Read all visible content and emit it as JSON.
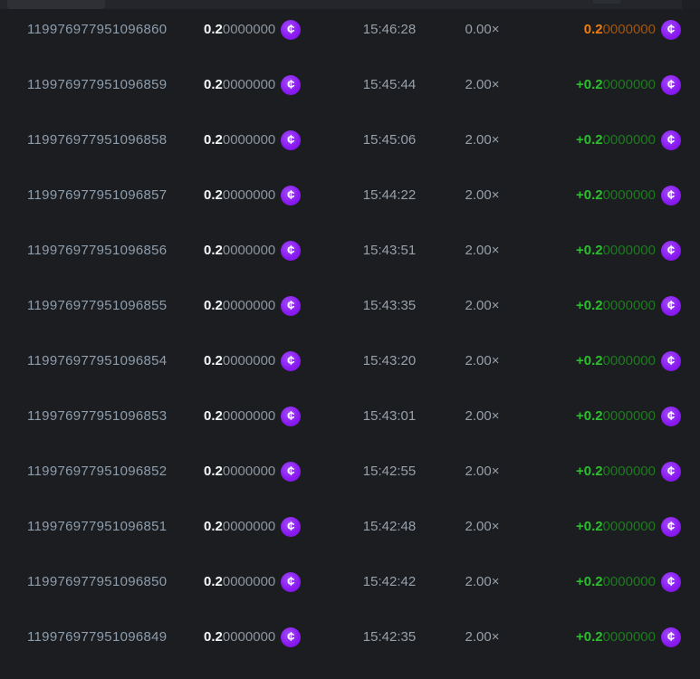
{
  "colors": {
    "page_bg": "#1b1d21",
    "topbar_bg": "#24262b",
    "topbar_segment": "#2e3036",
    "id_text": "#8e9dac",
    "grey_text": "#98a0aa",
    "dim_digits": "#8e959e",
    "white_bold": "#f4f5f6",
    "green_bright": "#2fbe2f",
    "green_dim": "#1e7a1e",
    "orange_bright": "#ef7d13",
    "orange_dim": "#a05511",
    "coin_purple": "#8a1cf1"
  },
  "icons": {
    "coin_glyph": "¢"
  },
  "table": {
    "rows": [
      {
        "id": "119976977951096860",
        "amount_main": "0.2",
        "amount_rest": "0000000",
        "time": "15:46:28",
        "multiplier": "0.00×",
        "payout_main": "0.2",
        "payout_rest": "0000000",
        "outcome": "loss"
      },
      {
        "id": "119976977951096859",
        "amount_main": "0.2",
        "amount_rest": "0000000",
        "time": "15:45:44",
        "multiplier": "2.00×",
        "payout_main": "+0.2",
        "payout_rest": "0000000",
        "outcome": "win"
      },
      {
        "id": "119976977951096858",
        "amount_main": "0.2",
        "amount_rest": "0000000",
        "time": "15:45:06",
        "multiplier": "2.00×",
        "payout_main": "+0.2",
        "payout_rest": "0000000",
        "outcome": "win"
      },
      {
        "id": "119976977951096857",
        "amount_main": "0.2",
        "amount_rest": "0000000",
        "time": "15:44:22",
        "multiplier": "2.00×",
        "payout_main": "+0.2",
        "payout_rest": "0000000",
        "outcome": "win"
      },
      {
        "id": "119976977951096856",
        "amount_main": "0.2",
        "amount_rest": "0000000",
        "time": "15:43:51",
        "multiplier": "2.00×",
        "payout_main": "+0.2",
        "payout_rest": "0000000",
        "outcome": "win"
      },
      {
        "id": "119976977951096855",
        "amount_main": "0.2",
        "amount_rest": "0000000",
        "time": "15:43:35",
        "multiplier": "2.00×",
        "payout_main": "+0.2",
        "payout_rest": "0000000",
        "outcome": "win"
      },
      {
        "id": "119976977951096854",
        "amount_main": "0.2",
        "amount_rest": "0000000",
        "time": "15:43:20",
        "multiplier": "2.00×",
        "payout_main": "+0.2",
        "payout_rest": "0000000",
        "outcome": "win"
      },
      {
        "id": "119976977951096853",
        "amount_main": "0.2",
        "amount_rest": "0000000",
        "time": "15:43:01",
        "multiplier": "2.00×",
        "payout_main": "+0.2",
        "payout_rest": "0000000",
        "outcome": "win"
      },
      {
        "id": "119976977951096852",
        "amount_main": "0.2",
        "amount_rest": "0000000",
        "time": "15:42:55",
        "multiplier": "2.00×",
        "payout_main": "+0.2",
        "payout_rest": "0000000",
        "outcome": "win"
      },
      {
        "id": "119976977951096851",
        "amount_main": "0.2",
        "amount_rest": "0000000",
        "time": "15:42:48",
        "multiplier": "2.00×",
        "payout_main": "+0.2",
        "payout_rest": "0000000",
        "outcome": "win"
      },
      {
        "id": "119976977951096850",
        "amount_main": "0.2",
        "amount_rest": "0000000",
        "time": "15:42:42",
        "multiplier": "2.00×",
        "payout_main": "+0.2",
        "payout_rest": "0000000",
        "outcome": "win"
      },
      {
        "id": "119976977951096849",
        "amount_main": "0.2",
        "amount_rest": "0000000",
        "time": "15:42:35",
        "multiplier": "2.00×",
        "payout_main": "+0.2",
        "payout_rest": "0000000",
        "outcome": "win"
      }
    ]
  }
}
